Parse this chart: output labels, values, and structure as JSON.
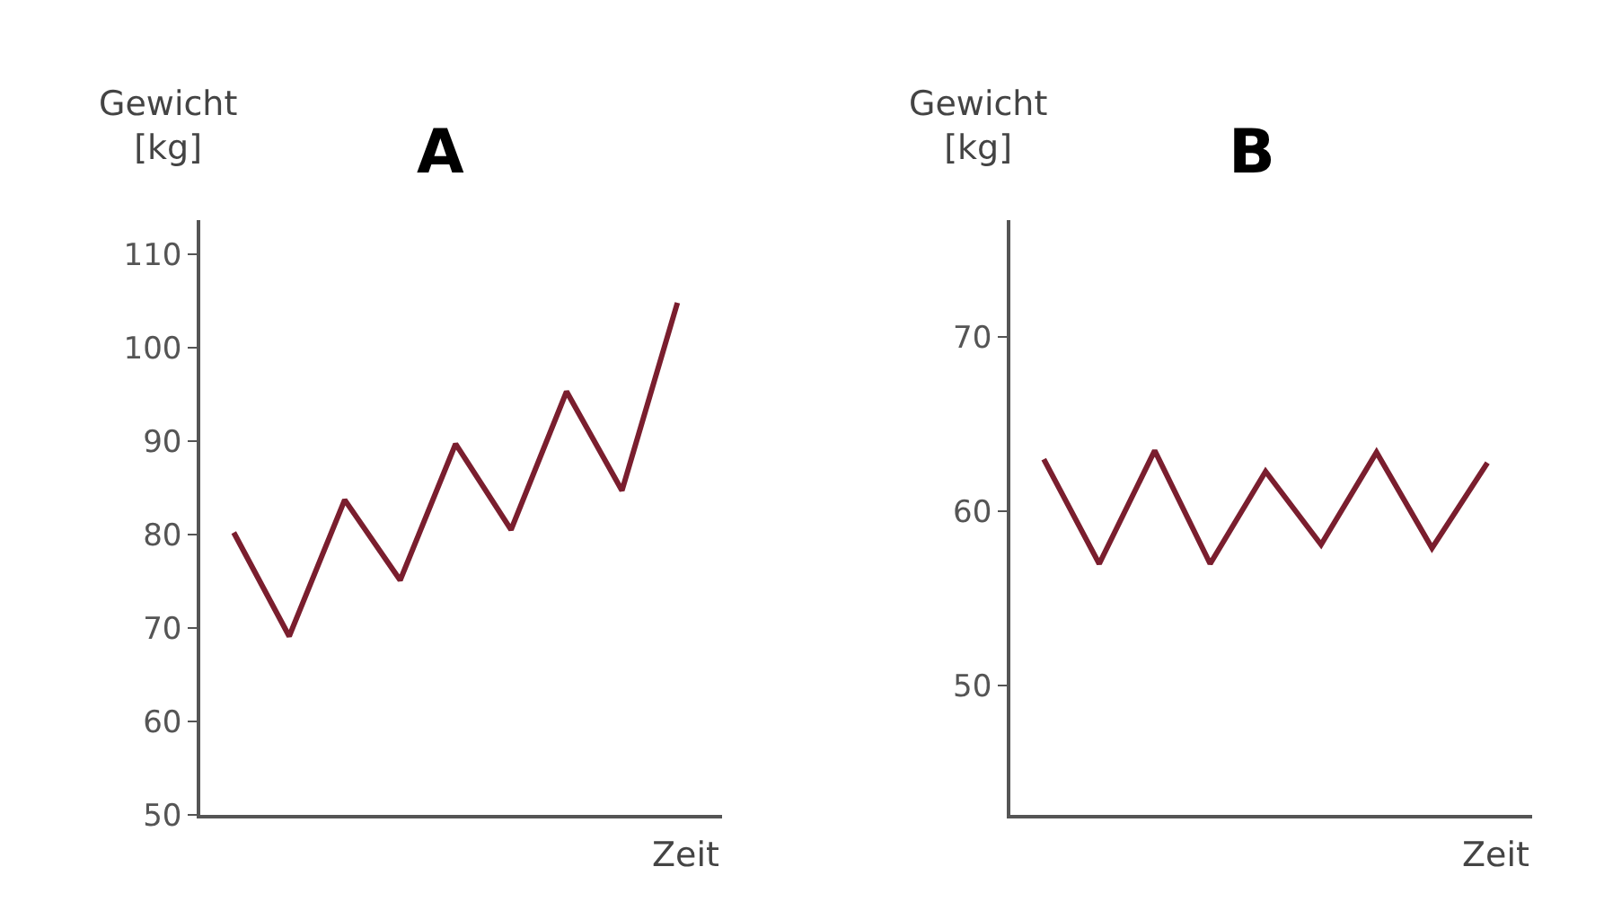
{
  "chart_data": [
    {
      "type": "line",
      "title": "A",
      "ylabel": "Gewicht\n[kg]",
      "xlabel": "Zeit",
      "categories": [
        null,
        null,
        null,
        null,
        null,
        null,
        null,
        null,
        null
      ],
      "series": [
        {
          "color": "#7a1e2e",
          "values": [
            80.2,
            69.1,
            83.7,
            75.1,
            89.7,
            80.5,
            95.3,
            84.7,
            104.8
          ]
        }
      ],
      "ylim": [
        50,
        113.6
      ],
      "yticks": [
        50,
        60,
        70,
        80,
        90,
        100,
        110
      ],
      "tick_labels": "y",
      "marker": "none",
      "line_style": "solid"
    },
    {
      "type": "line",
      "title": "B",
      "ylabel": "Gewicht\n[kg]",
      "xlabel": "Zeit",
      "categories": [
        null,
        null,
        null,
        null,
        null,
        null,
        null,
        null,
        null
      ],
      "series": [
        {
          "color": "#7a1e2e",
          "values": [
            63.0,
            57.0,
            63.5,
            57.0,
            62.3,
            58.1,
            63.4,
            57.9,
            62.8
          ]
        }
      ],
      "ylim": [
        42.6,
        76.7
      ],
      "yticks": [
        50,
        60,
        70
      ],
      "tick_labels": "y",
      "marker": "none",
      "line_style": "solid"
    }
  ]
}
